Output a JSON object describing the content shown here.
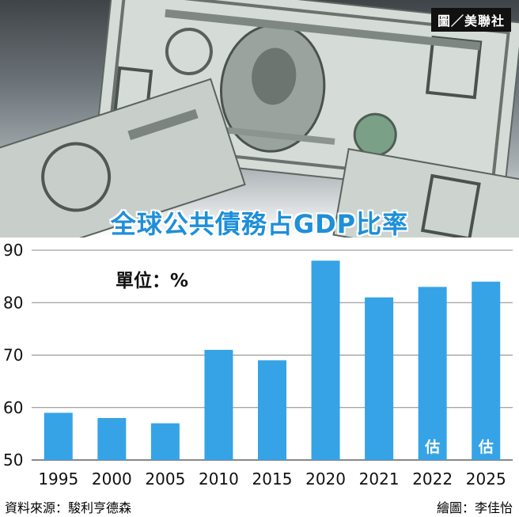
{
  "credit": "圖／美聯社",
  "chart_data": {
    "type": "bar",
    "title": "全球公共債務占GDP比率",
    "unit_label": "單位：%",
    "categories": [
      "1995",
      "2000",
      "2005",
      "2010",
      "2015",
      "2020",
      "2021",
      "2022",
      "2025"
    ],
    "values": [
      59,
      58,
      57,
      71,
      69,
      88,
      81,
      83,
      84
    ],
    "bar_annotations": [
      "",
      "",
      "",
      "",
      "",
      "",
      "",
      "估",
      "估"
    ],
    "yticks": [
      50,
      60,
      70,
      80,
      90
    ],
    "ylim": [
      50,
      90
    ],
    "grid": true,
    "bar_color": "#36a3e6",
    "grid_color": "#888888"
  },
  "footer": {
    "source": "資料來源：駿利亨德森",
    "designer": "繪圖：李佳怡"
  }
}
